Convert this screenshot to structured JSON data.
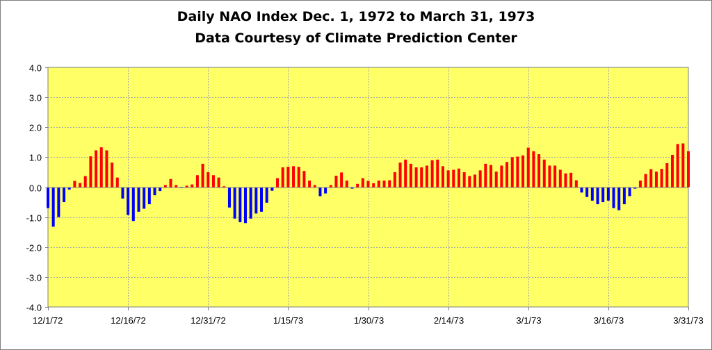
{
  "chart_data": {
    "type": "bar",
    "title": "Daily NAO Index Dec. 1, 1972 to March 31, 1973",
    "subtitle": "Data Courtesy of Climate Prediction Center",
    "xlabel": "",
    "ylabel": "",
    "ylim": [
      -4.0,
      4.0
    ],
    "yticks": [
      "4.0",
      "3.0",
      "2.0",
      "1.0",
      "0.0",
      "-1.0",
      "-2.0",
      "-3.0",
      "-4.0"
    ],
    "ytick_values": [
      4,
      3,
      2,
      1,
      0,
      -1,
      -2,
      -3,
      -4
    ],
    "xticks": [
      {
        "label": "12/1/72",
        "index": 0
      },
      {
        "label": "12/16/72",
        "index": 15
      },
      {
        "label": "12/31/72",
        "index": 30
      },
      {
        "label": "1/15/73",
        "index": 45
      },
      {
        "label": "1/30/73",
        "index": 60
      },
      {
        "label": "2/14/73",
        "index": 75
      },
      {
        "label": "3/1/73",
        "index": 90
      },
      {
        "label": "3/16/73",
        "index": 105
      },
      {
        "label": "3/31/73",
        "index": 120
      }
    ],
    "grid": true,
    "colors": {
      "positive": "#ff0000",
      "negative": "#0000ff",
      "plot_background": "#ffff66",
      "grid": "#a6a6a6"
    },
    "values": [
      -0.7,
      -1.32,
      -1.0,
      -0.5,
      -0.08,
      0.21,
      0.14,
      0.37,
      1.03,
      1.23,
      1.33,
      1.23,
      0.82,
      0.32,
      -0.38,
      -0.93,
      -1.13,
      -0.82,
      -0.72,
      -0.57,
      -0.27,
      -0.13,
      0.07,
      0.27,
      0.07,
      -0.03,
      0.05,
      0.09,
      0.4,
      0.78,
      0.5,
      0.4,
      0.32,
      0.03,
      -0.68,
      -1.05,
      -1.17,
      -1.2,
      -1.05,
      -0.88,
      -0.82,
      -0.52,
      -0.12,
      0.3,
      0.66,
      0.68,
      0.7,
      0.68,
      0.54,
      0.22,
      0.07,
      -0.3,
      -0.21,
      0.07,
      0.38,
      0.49,
      0.22,
      -0.05,
      0.11,
      0.3,
      0.21,
      0.13,
      0.22,
      0.22,
      0.23,
      0.5,
      0.82,
      0.92,
      0.78,
      0.66,
      0.66,
      0.72,
      0.9,
      0.92,
      0.7,
      0.56,
      0.58,
      0.62,
      0.5,
      0.37,
      0.42,
      0.56,
      0.78,
      0.74,
      0.52,
      0.72,
      0.84,
      1.0,
      1.02,
      1.06,
      1.32,
      1.2,
      1.1,
      0.92,
      0.72,
      0.72,
      0.58,
      0.46,
      0.48,
      0.23,
      -0.18,
      -0.33,
      -0.45,
      -0.57,
      -0.5,
      -0.45,
      -0.7,
      -0.77,
      -0.57,
      -0.3,
      -0.05,
      0.22,
      0.44,
      0.6,
      0.52,
      0.61,
      0.8,
      1.08,
      1.44,
      1.46,
      1.2
    ]
  }
}
